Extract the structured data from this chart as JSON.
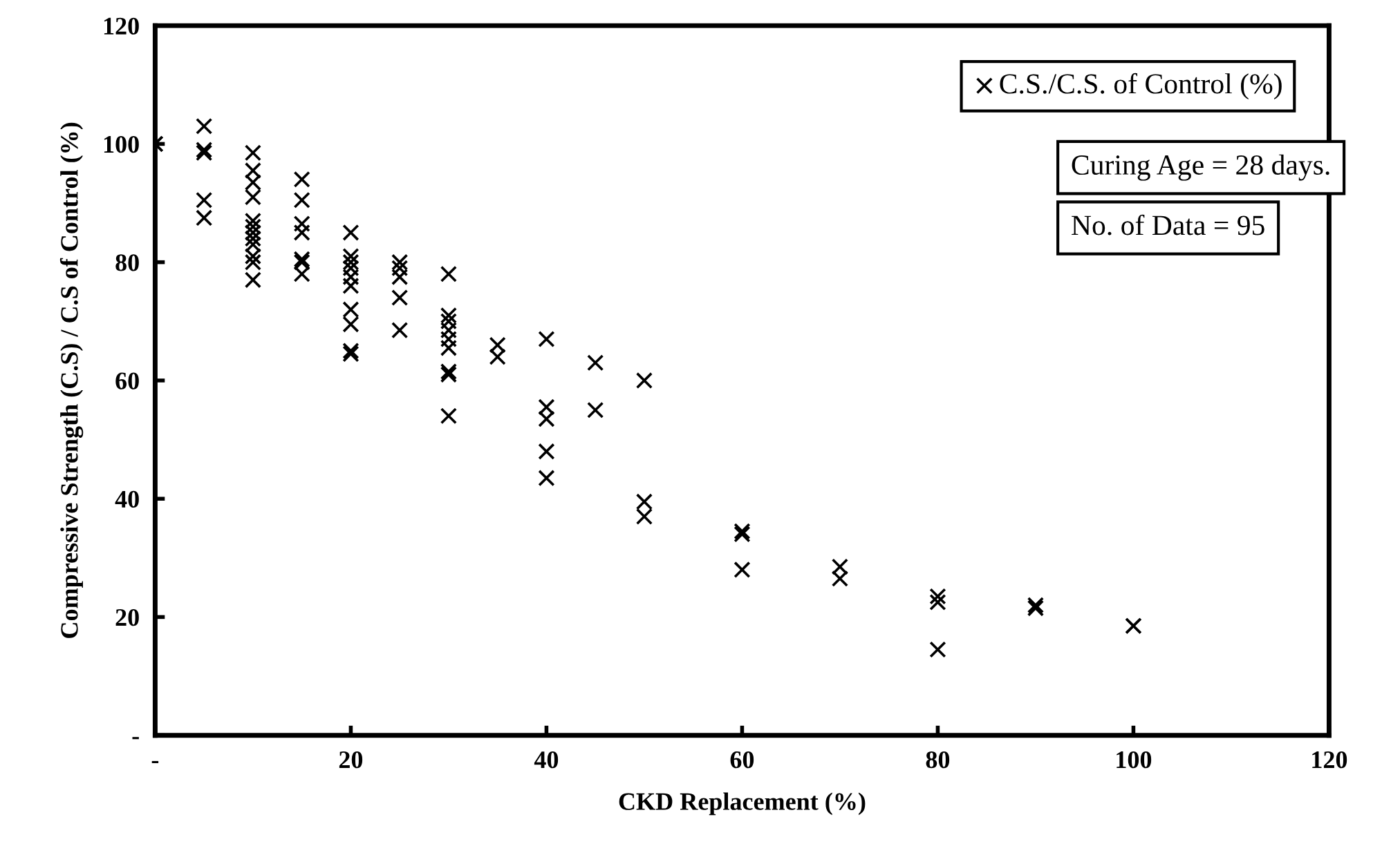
{
  "chart_data": {
    "type": "scatter",
    "xlabel": "CKD Replacement (%)",
    "ylabel": "Compressive Strength (C.S) / C.S of Control (%)",
    "xlim": [
      0,
      120
    ],
    "ylim": [
      0,
      120
    ],
    "xticks": [
      {
        "value": 0,
        "label": "-"
      },
      20,
      40,
      60,
      80,
      100,
      120
    ],
    "yticks": [
      {
        "value": 0,
        "label": "-"
      },
      20,
      40,
      60,
      80,
      100,
      120
    ],
    "grid": false,
    "legend": "top right",
    "marker": "cross",
    "annotations": [
      "Curing Age = 28 days.",
      "No. of Data = 95"
    ],
    "series": [
      {
        "name": "C.S./C.S. of Control (%)",
        "color": "#000000",
        "x": [
          0,
          0,
          5,
          5,
          5,
          5,
          5,
          10,
          10,
          10,
          10,
          10,
          10,
          10,
          10,
          10,
          10,
          10,
          10,
          15,
          15,
          15,
          15,
          15,
          15,
          15,
          20,
          20,
          20,
          20,
          20,
          20,
          20,
          20,
          20,
          20,
          25,
          25,
          25,
          25,
          25,
          30,
          30,
          30,
          30,
          30,
          30,
          30,
          30,
          30,
          35,
          35,
          40,
          40,
          40,
          40,
          40,
          45,
          45,
          50,
          50,
          50,
          60,
          60,
          60,
          70,
          70,
          80,
          80,
          80,
          90,
          90,
          100,
          100
        ],
        "values": [
          100,
          100,
          103,
          98.5,
          99,
          90.5,
          87.5,
          98.5,
          95.5,
          93.5,
          91,
          87,
          86,
          85,
          84,
          83,
          81,
          80,
          77,
          94,
          90.5,
          86.5,
          85,
          80.5,
          80,
          78,
          85,
          81,
          80,
          79,
          77.5,
          76,
          72,
          69.5,
          65,
          64.5,
          80,
          79,
          77.5,
          74,
          68.5,
          78,
          71,
          70,
          68.5,
          67,
          65.5,
          61.5,
          61,
          54,
          66,
          64,
          67,
          55.5,
          53.5,
          48,
          43.5,
          63,
          55,
          60,
          39.5,
          37,
          34.5,
          34,
          28,
          28.5,
          26.5,
          23.5,
          22.5,
          14.5,
          22,
          21.5,
          18.5,
          18.5
        ]
      }
    ]
  }
}
